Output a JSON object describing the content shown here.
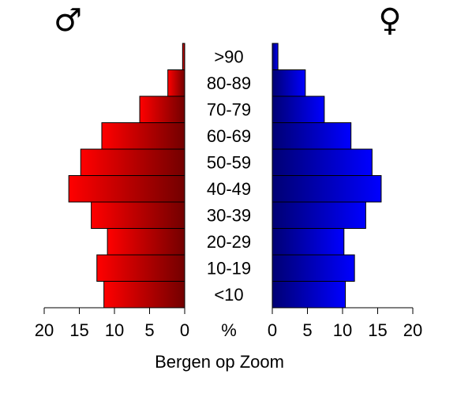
{
  "chart_data": {
    "type": "pyramid",
    "title": "Bergen op Zoom",
    "unit_label": "%",
    "categories": [
      "<10",
      "10-19",
      "20-29",
      "30-39",
      "40-49",
      "50-59",
      "60-69",
      "70-79",
      "80-89",
      ">90"
    ],
    "series": [
      {
        "name": "♂",
        "color": "#ff0000",
        "values": [
          11.5,
          12.5,
          11.0,
          13.3,
          16.5,
          14.8,
          11.8,
          6.4,
          2.4,
          0.3
        ]
      },
      {
        "name": "♀",
        "color": "#0000ff",
        "values": [
          10.4,
          11.7,
          10.2,
          13.3,
          15.5,
          14.2,
          11.2,
          7.4,
          4.7,
          0.8
        ]
      }
    ],
    "xlim": [
      0,
      20
    ],
    "xticks": [
      0,
      5,
      10,
      15,
      20
    ]
  }
}
